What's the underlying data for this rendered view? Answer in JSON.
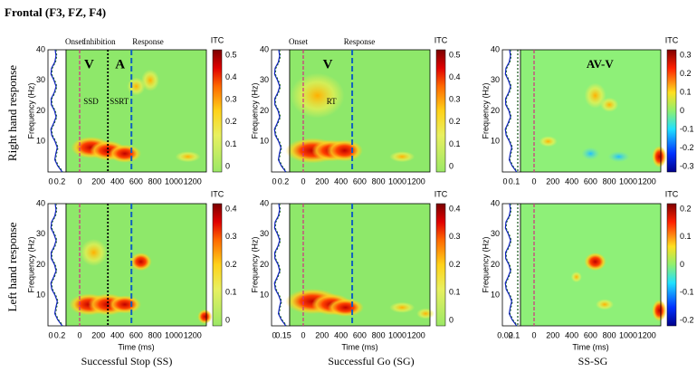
{
  "title": "Frontal (F3, FZ, F4)",
  "row_labels": [
    "Right hand response",
    "Left hand response"
  ],
  "column_labels": [
    "Successful Stop (SS)",
    "Successful Go (SG)",
    "SS-SG"
  ],
  "y_axis_label": "Frequency (Hz)",
  "x_axis_label": "Time (ms)",
  "colorbar_title": "ITC",
  "panels": [
    {
      "annotations": [
        "Onset",
        "Inhibition",
        "Response",
        "V",
        "A",
        "SSD",
        "SSRT"
      ],
      "side_ticks": [
        "0",
        "0.2"
      ],
      "freq_ticks": [
        "10",
        "20",
        "30",
        "40"
      ],
      "time_ticks": [
        "0",
        "200",
        "400",
        "600",
        "800",
        "1000",
        "1200"
      ],
      "colorbar_ticks": [
        "0.5",
        "0.4",
        "0.3",
        "0.2",
        "0.1",
        "0"
      ]
    },
    {
      "annotations": [
        "Onset",
        "Response",
        "V",
        "RT"
      ],
      "side_ticks": [
        "0",
        "0.2"
      ],
      "freq_ticks": [
        "10",
        "20",
        "30",
        "40"
      ],
      "time_ticks": [
        "0",
        "200",
        "400",
        "600",
        "800",
        "1000",
        "1200"
      ],
      "colorbar_ticks": [
        "0.5",
        "0.4",
        "0.3",
        "0.2",
        "0.1",
        "0"
      ]
    },
    {
      "annotations": [
        "AV-V"
      ],
      "side_ticks": [
        "0",
        "0.1"
      ],
      "freq_ticks": [
        "10",
        "20",
        "30",
        "40"
      ],
      "time_ticks": [
        "0",
        "200",
        "400",
        "600",
        "800",
        "1000",
        "1200"
      ],
      "colorbar_ticks": [
        "0.3",
        "0.2",
        "0.1",
        "0",
        "-0.1",
        "-0.2",
        "-0.3"
      ]
    },
    {
      "annotations": [],
      "side_ticks": [
        "0",
        "0.2"
      ],
      "freq_ticks": [
        "10",
        "20",
        "30",
        "40"
      ],
      "time_ticks": [
        "0",
        "200",
        "400",
        "600",
        "800",
        "1000",
        "1200"
      ],
      "colorbar_ticks": [
        "0.4",
        "0.3",
        "0.2",
        "0.1",
        "0"
      ]
    },
    {
      "annotations": [],
      "side_ticks": [
        "0",
        "0.15"
      ],
      "freq_ticks": [
        "10",
        "20",
        "30",
        "40"
      ],
      "time_ticks": [
        "0",
        "200",
        "400",
        "600",
        "800",
        "1000",
        "1200"
      ],
      "colorbar_ticks": [
        "0.4",
        "0.3",
        "0.2",
        "0.1",
        "0"
      ]
    },
    {
      "annotations": [],
      "side_ticks": [
        "0.02",
        "0.1"
      ],
      "freq_ticks": [
        "10",
        "20",
        "30",
        "40"
      ],
      "time_ticks": [
        "0",
        "200",
        "400",
        "600",
        "800",
        "1000",
        "1200"
      ],
      "colorbar_ticks": [
        "0.2",
        "0.1",
        "0",
        "-0.1",
        "-0.2"
      ]
    }
  ]
}
